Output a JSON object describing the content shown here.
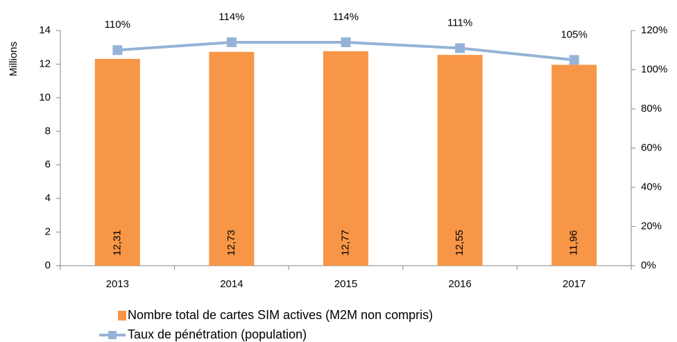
{
  "chart_data": {
    "type": "bar_line",
    "ylabel": "Millions",
    "categories": [
      "2013",
      "2014",
      "2015",
      "2016",
      "2017"
    ],
    "series": [
      {
        "name": "Nombre total de cartes SIM actives (M2M non compris)",
        "type": "bar",
        "color": "#f79646",
        "values": [
          12.31,
          12.73,
          12.77,
          12.55,
          11.96
        ],
        "value_labels": [
          "12,31",
          "12,73",
          "12,77",
          "12,55",
          "11,96"
        ]
      },
      {
        "name": "Taux de pénétration (population)",
        "type": "line",
        "color": "#95b3d7",
        "axis": "y2",
        "values": [
          110,
          114,
          114,
          111,
          105
        ],
        "value_labels": [
          "110%",
          "114%",
          "114%",
          "111%",
          "105%"
        ]
      }
    ],
    "ylim": [
      0,
      14
    ],
    "yticks": [
      0,
      2,
      4,
      6,
      8,
      10,
      12,
      14
    ],
    "y2lim": [
      0,
      120
    ],
    "y2ticks": [
      {
        "value": 0,
        "label": "0%"
      },
      {
        "value": 20,
        "label": "20%"
      },
      {
        "value": 40,
        "label": "40%"
      },
      {
        "value": 60,
        "label": "60%"
      },
      {
        "value": 80,
        "label": "80%"
      },
      {
        "value": 100,
        "label": "100%"
      },
      {
        "value": 120,
        "label": "120%"
      }
    ],
    "legend": "bottom"
  }
}
